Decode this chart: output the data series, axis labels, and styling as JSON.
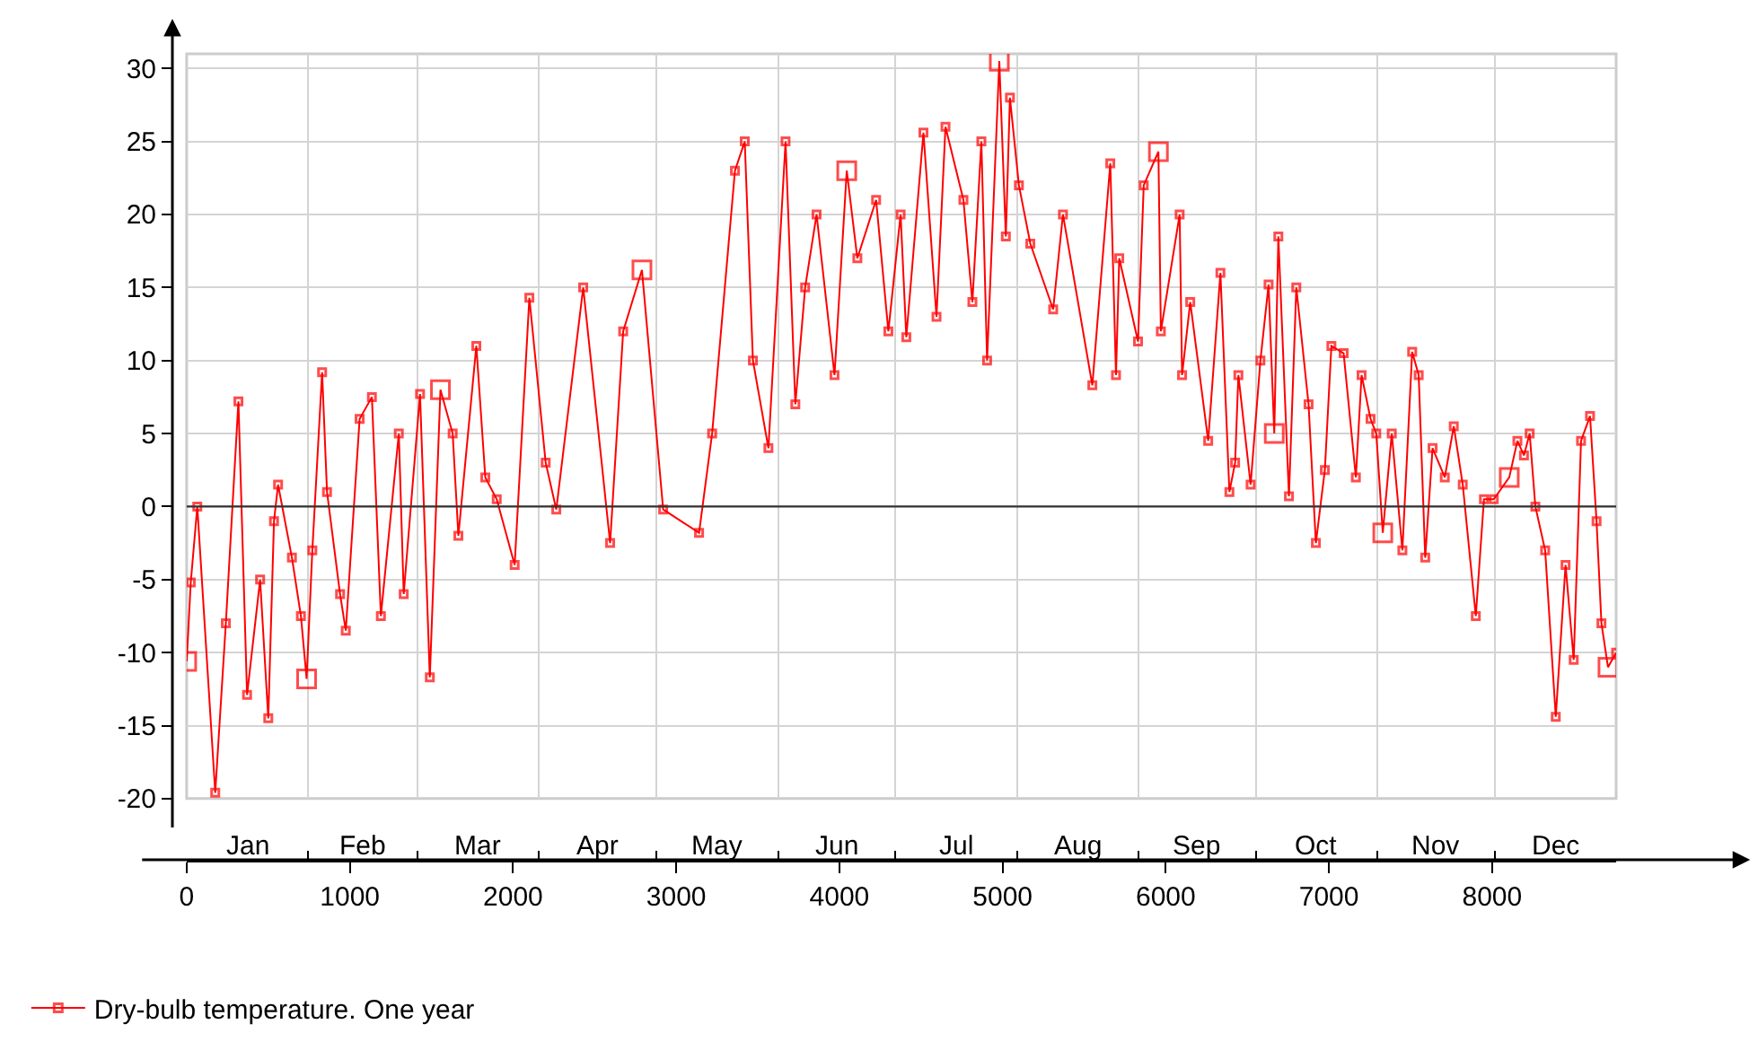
{
  "chart_data": {
    "type": "line",
    "annotations": [
      "Jan",
      "Feb",
      "Mar",
      "Apr",
      "May",
      "Jun",
      "Jul",
      "Aug",
      "Sep",
      "Oct",
      "Nov",
      "Dec"
    ],
    "x": [
      0,
      25,
      65,
      175,
      240,
      317,
      370,
      450,
      500,
      535,
      560,
      645,
      700,
      735,
      770,
      830,
      860,
      940,
      975,
      1060,
      1135,
      1190,
      1300,
      1330,
      1430,
      1490,
      1555,
      1630,
      1665,
      1775,
      1830,
      1900,
      2010,
      2100,
      2200,
      2265,
      2430,
      2595,
      2675,
      2790,
      2920,
      3140,
      3220,
      3360,
      3420,
      3470,
      3565,
      3670,
      3730,
      3790,
      3860,
      3970,
      4045,
      4110,
      4225,
      4300,
      4375,
      4410,
      4515,
      4595,
      4650,
      4760,
      4815,
      4870,
      4905,
      4980,
      5020,
      5045,
      5100,
      5170,
      5310,
      5370,
      5550,
      5660,
      5695,
      5715,
      5830,
      5865,
      5955,
      5970,
      6085,
      6100,
      6150,
      6260,
      6335,
      6390,
      6425,
      6445,
      6520,
      6580,
      6630,
      6665,
      6690,
      6755,
      6800,
      6875,
      6920,
      6975,
      7015,
      7090,
      7165,
      7200,
      7255,
      7290,
      7330,
      7385,
      7450,
      7510,
      7550,
      7590,
      7635,
      7710,
      7765,
      7820,
      7900,
      7950,
      8010,
      8105,
      8155,
      8195,
      8230,
      8265,
      8325,
      8390,
      8450,
      8500,
      8545,
      8600,
      8640,
      8670,
      8710,
      8760
    ],
    "series": [
      {
        "name": "Dry-bulb temperature. One year",
        "color": "#ff0000",
        "values": [
          -10.6,
          -5.2,
          0,
          -19.6,
          -8,
          7.2,
          -12.9,
          -5,
          -14.5,
          -1,
          1.5,
          -3.5,
          -7.5,
          -11.8,
          -3,
          9.2,
          1,
          -6,
          -8.5,
          6,
          7.5,
          -7.5,
          5,
          -6,
          7.7,
          -11.7,
          8,
          5,
          -2,
          11,
          2,
          0.5,
          -4,
          14.3,
          3,
          -0.2,
          15,
          -2.5,
          12,
          16.2,
          -0.2,
          -1.8,
          5,
          23,
          25,
          10,
          4,
          25,
          7,
          15,
          20,
          9,
          23,
          17,
          21,
          12,
          20,
          11.6,
          25.6,
          13,
          26,
          21,
          14,
          25,
          10,
          30.5,
          18.5,
          28,
          22,
          18,
          13.5,
          20,
          8.3,
          23.5,
          9,
          17,
          11.3,
          22,
          24.3,
          12,
          20,
          9,
          14,
          4.5,
          16,
          1,
          3,
          9,
          1.5,
          10,
          15.2,
          5,
          18.5,
          0.7,
          15,
          7,
          -2.5,
          2.5,
          11,
          10.5,
          2,
          9,
          6,
          5,
          -1.8,
          5,
          -3,
          10.6,
          9,
          -3.5,
          4,
          2,
          5.5,
          1.5,
          -7.5,
          0.5,
          0.5,
          2,
          4.5,
          3.5,
          5,
          0,
          -3,
          -14.4,
          -4,
          -10.5,
          4.5,
          6.2,
          -1,
          -8,
          -11,
          -10
        ]
      }
    ],
    "xlim": [
      0,
      8760
    ],
    "xticks": [
      0,
      {
        "value": 744,
        "label": null
      },
      1000,
      {
        "value": 1416,
        "label": null
      },
      2000,
      {
        "value": 2160,
        "label": null
      },
      {
        "value": 2880,
        "label": null
      },
      3000,
      {
        "value": 3624,
        "label": null
      },
      4000,
      {
        "value": 4344,
        "label": null
      },
      5000,
      {
        "value": 5088,
        "label": null
      },
      {
        "value": 5832,
        "label": null
      },
      6000,
      {
        "value": 6552,
        "label": null
      },
      7000,
      {
        "value": 7296,
        "label": null
      },
      8000,
      {
        "value": 8016,
        "label": null
      },
      {
        "value": 8760,
        "label": null
      }
    ],
    "ylim": [
      -20,
      31
    ],
    "yticks": [
      -20,
      -15,
      -10,
      -5,
      0,
      5,
      10,
      15,
      20,
      25,
      30
    ],
    "ref_lines": [
      {
        "axis": "y",
        "value": 0,
        "color": "#333333"
      }
    ],
    "grid": true,
    "legend": "bottom left",
    "marker": "square",
    "line_style": "solid"
  }
}
